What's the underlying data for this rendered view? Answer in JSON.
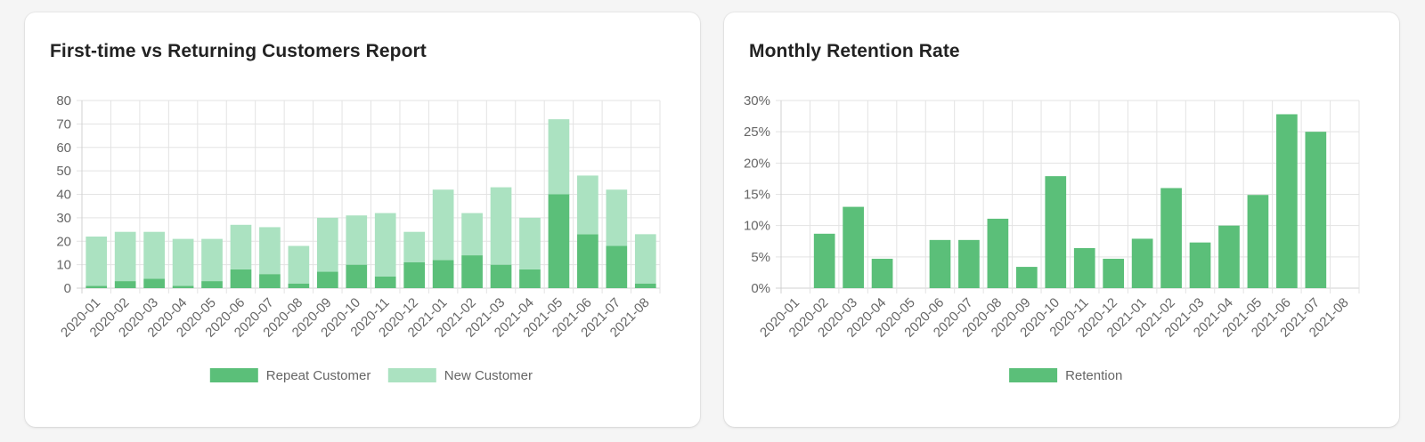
{
  "colors": {
    "repeat": "#5bbf79",
    "new": "#abe2c1",
    "retention": "#5bbf79",
    "grid": "#e3e3e3",
    "axis": "#d0d0d0"
  },
  "charts": {
    "customers": {
      "title": "First-time vs Returning Customers Report"
    },
    "retention": {
      "title": "Monthly Retention Rate"
    }
  },
  "chart_data": [
    {
      "type": "bar",
      "stacked": true,
      "title": "First-time vs Returning Customers Report",
      "categories": [
        "2020-01",
        "2020-02",
        "2020-03",
        "2020-04",
        "2020-05",
        "2020-06",
        "2020-07",
        "2020-08",
        "2020-09",
        "2020-10",
        "2020-11",
        "2020-12",
        "2021-01",
        "2021-02",
        "2021-03",
        "2021-04",
        "2021-05",
        "2021-06",
        "2021-07",
        "2021-08"
      ],
      "series": [
        {
          "name": "Repeat Customer",
          "values": [
            1,
            3,
            4,
            1,
            3,
            8,
            6,
            2,
            7,
            10,
            5,
            11,
            12,
            14,
            10,
            8,
            40,
            23,
            18,
            2
          ]
        },
        {
          "name": "New Customer",
          "values": [
            21,
            21,
            20,
            20,
            18,
            19,
            20,
            16,
            23,
            21,
            27,
            13,
            30,
            18,
            33,
            22,
            32,
            25,
            24,
            21
          ]
        }
      ],
      "ylim": [
        0,
        80
      ],
      "yticks": [
        "80",
        "70",
        "60",
        "50",
        "40",
        "30",
        "20",
        "10",
        "0"
      ],
      "grid": true,
      "legend": "bottom"
    },
    {
      "type": "bar",
      "title": "Monthly Retention Rate",
      "categories": [
        "2020-01",
        "2020-02",
        "2020-03",
        "2020-04",
        "2020-05",
        "2020-06",
        "2020-07",
        "2020-08",
        "2020-09",
        "2020-10",
        "2020-11",
        "2020-12",
        "2021-01",
        "2021-02",
        "2021-03",
        "2021-04",
        "2021-05",
        "2021-06",
        "2021-07",
        "2021-08"
      ],
      "series": [
        {
          "name": "Retention",
          "values": [
            0,
            8.7,
            13,
            4.7,
            0,
            7.7,
            7.7,
            11.1,
            3.4,
            17.9,
            6.4,
            4.7,
            7.9,
            16,
            7.3,
            10,
            14.9,
            27.8,
            25,
            0
          ]
        }
      ],
      "ylim": [
        0,
        30
      ],
      "yticks": [
        "30%",
        "25%",
        "20%",
        "15%",
        "10%",
        "5%",
        "0%"
      ],
      "grid": true,
      "legend": "bottom"
    }
  ]
}
